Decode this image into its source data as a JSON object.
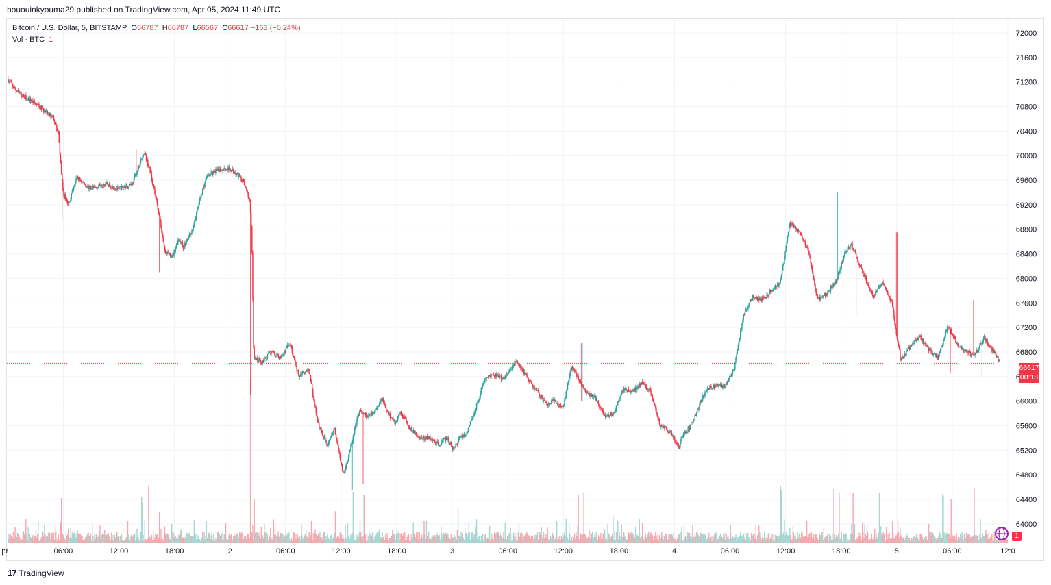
{
  "published": {
    "text": "hououinkyouma29 published on TradingView.com, Apr 05, 2024 11:49 UTC"
  },
  "legend": {
    "symbol": "Bitcoin / U.S. Dollar, 5, BITSTAMP",
    "o_label": "O",
    "o_value": "66787",
    "h_label": "H",
    "h_value": "66787",
    "l_label": "L",
    "l_value": "66567",
    "c_label": "C",
    "c_value": "66617",
    "change": "−163 (−0.24%)",
    "vol_label": "Vol · BTC",
    "vol_value": "1"
  },
  "price_tag": {
    "price": "66617",
    "countdown": "00:18"
  },
  "footer": {
    "brand": "TradingView",
    "logo_mark": "17"
  },
  "badge": {
    "count": "1",
    "icon": "globe-icon"
  },
  "colors": {
    "up": "#26a69a",
    "down": "#f23645",
    "up_vol": "#a6d7d2",
    "down_vol": "#f7a8ae",
    "grid": "#f0f3fa"
  },
  "chart_data": {
    "type": "candlestick",
    "title": "Bitcoin / U.S. Dollar, 5, BITSTAMP",
    "ylim": [
      64000,
      72200
    ],
    "y_ticks": [
      72000,
      71600,
      71200,
      70800,
      70400,
      70000,
      69600,
      69200,
      68800,
      68400,
      68000,
      67600,
      67200,
      66800,
      66400,
      66000,
      65600,
      65200,
      64800,
      64400,
      64000
    ],
    "x_tick_labels": [
      "pr",
      "06:00",
      "12:00",
      "18:00",
      "2",
      "06:00",
      "12:00",
      "18:00",
      "3",
      "06:00",
      "12:00",
      "18:00",
      "4",
      "06:00",
      "12:00",
      "18:00",
      "5",
      "06:00",
      "12:0"
    ],
    "x_hours": [
      -0.3,
      6,
      12,
      18,
      24,
      30,
      36,
      42,
      48,
      54,
      60,
      66,
      72,
      78,
      84,
      90,
      96,
      102,
      108
    ],
    "x_range_hours": [
      -0.1,
      108.0
    ],
    "last_price": 66617,
    "price_path_hours": [
      0,
      1,
      3,
      5,
      5.5,
      6,
      6.6,
      7.5,
      9,
      10.5,
      12,
      13.5,
      14,
      14.8,
      15.5,
      16.3,
      17,
      17.8,
      18.5,
      19,
      20,
      20.8,
      21.5,
      22.5,
      23.5,
      24.5,
      25.4,
      26.2,
      26.4,
      26.6,
      27.5,
      28.5,
      29.5,
      30.5,
      31.5,
      32.5,
      33.5,
      34.5,
      35.3,
      36.3,
      37,
      38,
      38.7,
      39.5,
      40.5,
      41,
      41.8,
      42.5,
      43.5,
      44.5,
      45.5,
      46.5,
      47.5,
      48.2,
      48.8,
      49.5,
      50.5,
      51.5,
      52.5,
      53.5,
      55,
      56.5,
      57.5,
      58.2,
      59,
      60,
      61,
      61.8,
      62.5,
      63.5,
      64.5,
      65.5,
      66.5,
      67.5,
      68.5,
      69.5,
      70.5,
      71.5,
      72.5,
      73,
      73.8,
      74.5,
      75.5,
      76.5,
      77.5,
      78.5,
      79.5,
      80.5,
      81.5,
      82.5,
      83.5,
      84.5,
      85.5,
      86.5,
      87.5,
      88.5,
      89.5,
      90.5,
      91.2,
      91.8,
      92.5,
      93.5,
      94.5,
      95.5,
      96.5,
      97.5,
      98.5,
      99.5,
      100.5,
      101.5,
      101.8,
      102.5,
      103.5,
      104.5,
      105.5,
      106,
      106.6,
      107.2,
      107.6,
      108.0
    ],
    "price_path_values": [
      71250,
      71050,
      70850,
      70600,
      70350,
      69400,
      69200,
      69650,
      69450,
      69550,
      69450,
      69550,
      69750,
      70050,
      69700,
      69100,
      68450,
      68350,
      68650,
      68500,
      68800,
      69300,
      69650,
      69750,
      69800,
      69750,
      69600,
      69250,
      68600,
      66700,
      66650,
      66800,
      66700,
      66950,
      66400,
      66550,
      65650,
      65300,
      65550,
      64800,
      65200,
      65850,
      65750,
      65800,
      66050,
      65850,
      65650,
      65800,
      65550,
      65400,
      65400,
      65300,
      65400,
      65200,
      65400,
      65450,
      65850,
      66350,
      66450,
      66350,
      66650,
      66300,
      66100,
      65950,
      66000,
      65900,
      66600,
      66300,
      66150,
      66050,
      65750,
      65800,
      66200,
      66150,
      66300,
      66150,
      65600,
      65500,
      65250,
      65450,
      65600,
      65850,
      66200,
      66250,
      66250,
      66550,
      67400,
      67700,
      67650,
      67800,
      67950,
      68900,
      68750,
      68450,
      67650,
      67750,
      67950,
      68450,
      68550,
      68300,
      68050,
      67700,
      67950,
      67600,
      66650,
      66900,
      67050,
      66850,
      66700,
      67200,
      67150,
      66950,
      66800,
      66750,
      67050,
      66900,
      66787,
      66617
    ],
    "wick_events": [
      {
        "hour": 5.9,
        "low": 68950,
        "high": 69400
      },
      {
        "hour": 16.4,
        "low": 68100,
        "high": 68700
      },
      {
        "hour": 13.9,
        "low": 69700,
        "high": 70100
      },
      {
        "hour": 26.2,
        "low": 66100,
        "high": 69100
      },
      {
        "hour": 26.8,
        "low": 66600,
        "high": 67300
      },
      {
        "hour": 37.2,
        "low": 64550,
        "high": 65300
      },
      {
        "hour": 38.4,
        "low": 64650,
        "high": 65200
      },
      {
        "hour": 48.6,
        "low": 64500,
        "high": 65000
      },
      {
        "hour": 62.0,
        "low": 66000,
        "high": 66950
      },
      {
        "hour": 75.6,
        "low": 65150,
        "high": 65600
      },
      {
        "hour": 89.6,
        "low": 68600,
        "high": 69400
      },
      {
        "hour": 91.6,
        "low": 67400,
        "high": 68100
      },
      {
        "hour": 96.0,
        "low": 68200,
        "high": 68750
      },
      {
        "hour": 101.8,
        "low": 66450,
        "high": 67000
      },
      {
        "hour": 104.3,
        "low": 66950,
        "high": 67650
      },
      {
        "hour": 105.2,
        "low": 66400,
        "high": 66850
      }
    ],
    "volume_spikes_hours": [
      5.8,
      14.5,
      15.2,
      16.4,
      26.2,
      26.6,
      35.4,
      37.3,
      38.5,
      48.6,
      61.6,
      62.2,
      83.5,
      89.2,
      89.8,
      91.3,
      94.1,
      101.0,
      101.9,
      104.4
    ]
  }
}
